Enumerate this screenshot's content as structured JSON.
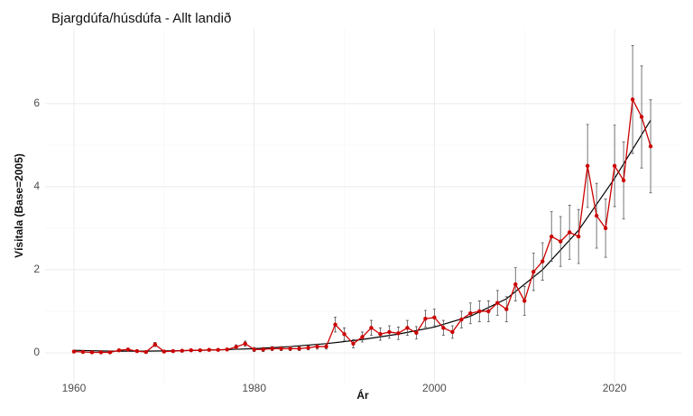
{
  "chart_data": {
    "type": "line",
    "title": "Bjargdúfa/húsdúfa - Allt landið",
    "xlabel": "Ár",
    "ylabel": "Vísitala (Base=2005)",
    "xlim": [
      1956.8,
      2027.4
    ],
    "xticks": [
      1960,
      1980,
      2000,
      2020
    ],
    "ylim": [
      -0.74,
      7.8
    ],
    "yticks": [
      0,
      2,
      4,
      6
    ],
    "grid": true,
    "series": [
      {
        "color": "#cc0000",
        "x": [
          1960,
          1961,
          1962,
          1963,
          1964,
          1965,
          1966,
          1967,
          1968,
          1969,
          1970,
          1971,
          1972,
          1973,
          1974,
          1975,
          1976,
          1977,
          1978,
          1979,
          1980,
          1981,
          1982,
          1983,
          1984,
          1985,
          1986,
          1987,
          1988,
          1989,
          1990,
          1991,
          1992,
          1993,
          1994,
          1995,
          1996,
          1997,
          1998,
          1999,
          2000,
          2001,
          2002,
          2003,
          2004,
          2005,
          2006,
          2007,
          2008,
          2009,
          2010,
          2011,
          2012,
          2013,
          2014,
          2015,
          2016,
          2017,
          2018,
          2019,
          2020,
          2021,
          2022,
          2023,
          2024
        ],
        "values": [
          0.03,
          0.02,
          0.01,
          0.01,
          0.01,
          0.06,
          0.08,
          0.04,
          0.02,
          0.2,
          0.03,
          0.04,
          0.05,
          0.06,
          0.06,
          0.07,
          0.07,
          0.08,
          0.14,
          0.22,
          0.08,
          0.08,
          0.1,
          0.1,
          0.1,
          0.1,
          0.12,
          0.15,
          0.15,
          0.68,
          0.45,
          0.22,
          0.38,
          0.6,
          0.45,
          0.5,
          0.47,
          0.6,
          0.48,
          0.82,
          0.85,
          0.6,
          0.5,
          0.8,
          0.95,
          1.0,
          1.0,
          1.2,
          1.05,
          1.65,
          1.25,
          1.95,
          2.2,
          2.8,
          2.68,
          2.9,
          2.8,
          4.5,
          3.3,
          3.0,
          4.5,
          4.15,
          6.1,
          5.68,
          4.97
        ],
        "errors": [
          0.03,
          0.03,
          0.03,
          0.03,
          0.03,
          0.03,
          0.03,
          0.03,
          0.03,
          0.05,
          0.03,
          0.03,
          0.03,
          0.03,
          0.03,
          0.03,
          0.03,
          0.03,
          0.05,
          0.06,
          0.05,
          0.05,
          0.05,
          0.05,
          0.05,
          0.05,
          0.05,
          0.06,
          0.06,
          0.18,
          0.15,
          0.1,
          0.12,
          0.18,
          0.15,
          0.15,
          0.15,
          0.18,
          0.15,
          0.2,
          0.2,
          0.18,
          0.15,
          0.2,
          0.25,
          0.25,
          0.25,
          0.3,
          0.3,
          0.4,
          0.35,
          0.45,
          0.45,
          0.6,
          0.6,
          0.65,
          0.65,
          1.0,
          0.78,
          0.7,
          0.98,
          0.93,
          1.3,
          1.23,
          1.12
        ]
      },
      {
        "color": "#000000",
        "x": [
          1960,
          1964,
          1968,
          1972,
          1976,
          1980,
          1984,
          1988,
          1992,
          1996,
          2000,
          2004,
          2008,
          2012,
          2016,
          2020,
          2024
        ],
        "values": [
          0.06,
          0.04,
          0.04,
          0.05,
          0.07,
          0.1,
          0.15,
          0.22,
          0.32,
          0.45,
          0.62,
          0.88,
          1.3,
          2.0,
          2.95,
          4.2,
          5.6
        ]
      }
    ]
  }
}
